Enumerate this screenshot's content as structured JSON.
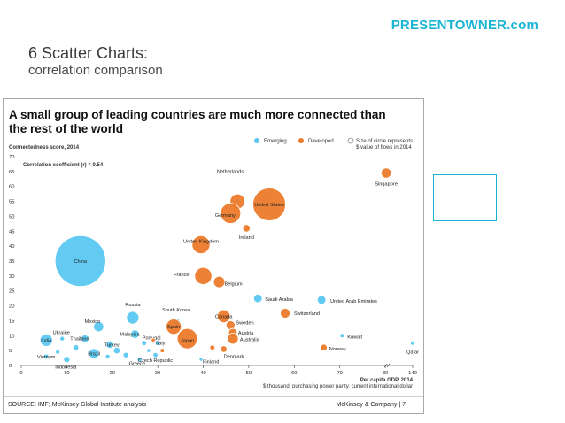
{
  "brand": "PRESENTOWNER.com",
  "slide_title": "6 Scatter Charts:",
  "slide_subtitle": "correlation comparison",
  "chart_data": {
    "type": "scatter",
    "title": "A small group of leading countries are much more connected than the rest of the world",
    "ylabel": "Connectedness score, 2014",
    "xlabel": "Per capita GDP, 2014",
    "xlabel_sub": "$ thousand, purchasing power parity, current international dollar",
    "annotation": "Correlation coefficient (r) = 0.54",
    "legend": {
      "emerging": "Emerging",
      "developed": "Developed",
      "size_note_1": "Size of circle represents",
      "size_note_2": "$ value of flows in 2014"
    },
    "colors": {
      "emerging": "#5bc8f0",
      "developed": "#ec7b2b"
    },
    "x_ticks": [
      "0",
      "10",
      "20",
      "30",
      "40",
      "50",
      "60",
      "70",
      "80",
      "140"
    ],
    "y_ticks": [
      "0",
      "5",
      "10",
      "15",
      "20",
      "25",
      "30",
      "35",
      "40",
      "45",
      "50",
      "55",
      "60",
      "65",
      "70"
    ],
    "ylim": [
      0,
      70
    ],
    "series": [
      {
        "group": "emerging",
        "points": [
          {
            "label": "China",
            "x": 13,
            "y": 35,
            "size": 13
          },
          {
            "label": "Russia",
            "x": 24.5,
            "y": 16,
            "size": 3.2
          },
          {
            "label": "Mexico",
            "x": 17,
            "y": 13,
            "size": 2.6
          },
          {
            "label": "Malaysia",
            "x": 25,
            "y": 10.5,
            "size": 2.2
          },
          {
            "label": "India",
            "x": 5.5,
            "y": 8.5,
            "size": 3.2
          },
          {
            "label": "Thailand",
            "x": 14,
            "y": 9,
            "size": 1.9
          },
          {
            "label": "Ukraine",
            "x": 9,
            "y": 9,
            "size": 1.2
          },
          {
            "label": "Turkey",
            "x": 19.5,
            "y": 7,
            "size": 1.9
          },
          {
            "label": "Brazil",
            "x": 16,
            "y": 4,
            "size": 2.6
          },
          {
            "label": "Vietnam",
            "x": 5.5,
            "y": 3,
            "size": 1.3
          },
          {
            "label": "Indonesia",
            "x": 10,
            "y": 2,
            "size": 1.6
          },
          {
            "label": "Saudi Arabia",
            "x": 52,
            "y": 22.5,
            "size": 2.2
          },
          {
            "label": "United Arab Emirates",
            "x": 66,
            "y": 22,
            "size": 2.2
          },
          {
            "label": "Kuwait",
            "x": 70.5,
            "y": 10,
            "size": 1.1
          },
          {
            "label": "Qatar",
            "x": 140,
            "y": 7.5,
            "size": 1.1
          },
          {
            "label": "South Korea",
            "x": 34,
            "y": 14.5,
            "size": 2.1
          },
          {
            "label": "Portugal",
            "x": 27,
            "y": 7.5,
            "size": 1.3
          },
          {
            "label": "Italy",
            "x": 30,
            "y": 7.5,
            "size": 1.3
          },
          {
            "label": "Greece",
            "x": 26,
            "y": 2,
            "size": 1.2
          },
          {
            "label": "Czech Republic",
            "x": 29.5,
            "y": 3.5,
            "size": 1.3
          },
          {
            "label": "Finland",
            "x": 39.5,
            "y": 2,
            "size": 0.9
          },
          {
            "label": "",
            "x": 12,
            "y": 6,
            "size": 1.5
          },
          {
            "label": "",
            "x": 21,
            "y": 5,
            "size": 1.7
          },
          {
            "label": "",
            "x": 23,
            "y": 3.5,
            "size": 1.4
          },
          {
            "label": "",
            "x": 19,
            "y": 3,
            "size": 1.2
          },
          {
            "label": "",
            "x": 8,
            "y": 4.5,
            "size": 1.1
          },
          {
            "label": "",
            "x": 28,
            "y": 5,
            "size": 1.0
          }
        ]
      },
      {
        "group": "developed",
        "points": [
          {
            "label": "Singapore",
            "x": 82,
            "y": 64.5,
            "size": 2.6
          },
          {
            "label": "United States",
            "x": 54.5,
            "y": 54,
            "size": 8.4
          },
          {
            "label": "Netherlands",
            "x": 47.5,
            "y": 55,
            "size": 3.8
          },
          {
            "label": "Germany",
            "x": 46,
            "y": 51,
            "size": 5.2
          },
          {
            "label": "Ireland",
            "x": 49.5,
            "y": 46,
            "size": 1.9
          },
          {
            "label": "United Kingdom",
            "x": 39.5,
            "y": 40.5,
            "size": 4.6
          },
          {
            "label": "France",
            "x": 40,
            "y": 30,
            "size": 4.4
          },
          {
            "label": "Belgium",
            "x": 43.5,
            "y": 28,
            "size": 2.9
          },
          {
            "label": "Canada",
            "x": 44.5,
            "y": 16.5,
            "size": 3.3
          },
          {
            "label": "Switzerland",
            "x": 58,
            "y": 17.5,
            "size": 2.5
          },
          {
            "label": "Spain",
            "x": 33.5,
            "y": 13,
            "size": 3.9
          },
          {
            "label": "Japan",
            "x": 36.5,
            "y": 9,
            "size": 5.2
          },
          {
            "label": "Sweden",
            "x": 46,
            "y": 13.5,
            "size": 2.3
          },
          {
            "label": "Austria",
            "x": 46.5,
            "y": 11,
            "size": 2.2
          },
          {
            "label": "Australia",
            "x": 46.5,
            "y": 9,
            "size": 2.8
          },
          {
            "label": "Denmark",
            "x": 44.5,
            "y": 5.5,
            "size": 1.7
          },
          {
            "label": "Norway",
            "x": 66.5,
            "y": 6,
            "size": 1.7
          },
          {
            "label": "",
            "x": 42,
            "y": 6,
            "size": 1.3
          },
          {
            "label": "",
            "x": 31,
            "y": 5,
            "size": 1.1
          },
          {
            "label": "",
            "x": 29,
            "y": 8.5,
            "size": 1.0
          }
        ]
      }
    ]
  },
  "footer": {
    "source": "SOURCE: IMF; McKinsey Global Institute analysis",
    "credit": "McKinsey & Company  |  7"
  }
}
